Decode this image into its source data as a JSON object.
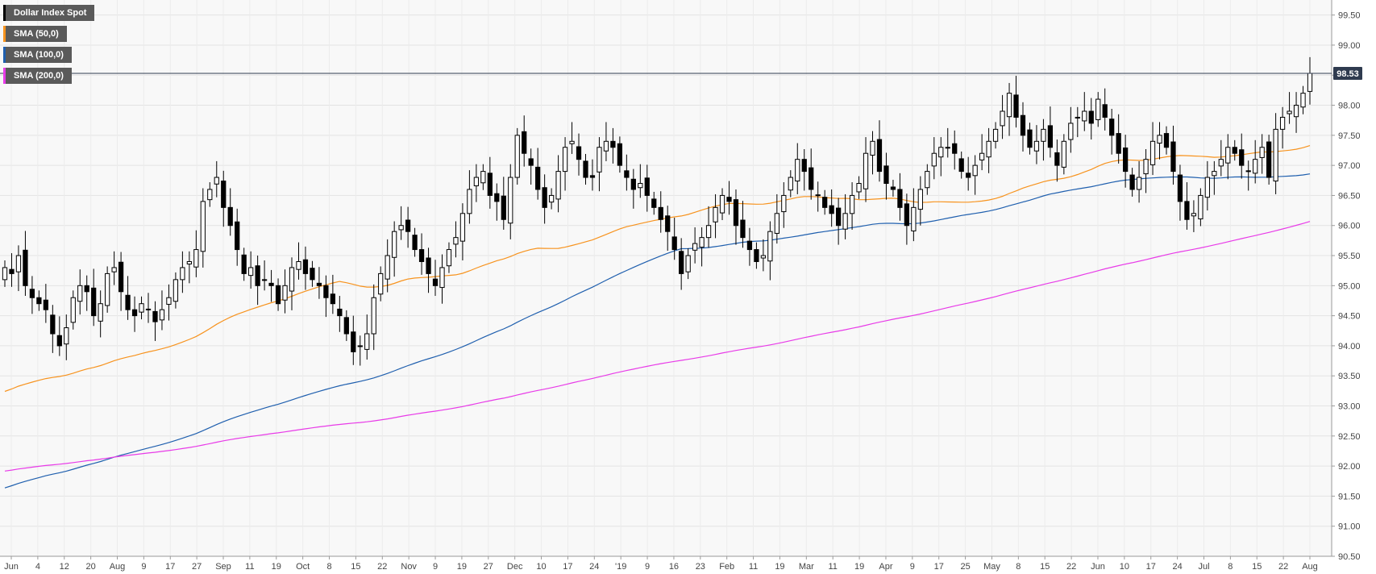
{
  "chart_data": {
    "type": "candlestick",
    "title": "",
    "xlabel": "",
    "ylabel": "",
    "ylim": [
      90.5,
      99.75
    ],
    "y_ticks": [
      "99.50",
      "99.00",
      "98.50",
      "98.00",
      "97.50",
      "97.00",
      "96.50",
      "96.00",
      "95.50",
      "95.00",
      "94.50",
      "94.00",
      "93.50",
      "93.00",
      "92.50",
      "92.00",
      "91.50",
      "91.00",
      "90.50"
    ],
    "x_ticks": [
      "Jun",
      "4",
      "12",
      "20",
      "Aug",
      "9",
      "17",
      "27",
      "Sep",
      "11",
      "19",
      "Oct",
      "8",
      "15",
      "22",
      "Nov",
      "9",
      "19",
      "27",
      "Dec",
      "10",
      "17",
      "24",
      "'19",
      "9",
      "16",
      "23",
      "Feb",
      "11",
      "19",
      "Mar",
      "11",
      "19",
      "Apr",
      "9",
      "17",
      "25",
      "May",
      "8",
      "15",
      "22",
      "Jun",
      "10",
      "17",
      "24",
      "Jul",
      "8",
      "15",
      "22",
      "Aug"
    ],
    "grid": true,
    "current_price": {
      "label": "98.53",
      "value": 98.53
    },
    "legend": [
      {
        "name": "Dollar Index Spot",
        "color": "#000000"
      },
      {
        "name": "SMA (50,0)",
        "color": "#f7931e"
      },
      {
        "name": "SMA (100,0)",
        "color": "#1f5fae"
      },
      {
        "name": "SMA (200,0)",
        "color": "#e83be8"
      }
    ],
    "closes": [
      95.3,
      95.2,
      95.5,
      95.0,
      94.8,
      94.7,
      94.6,
      94.2,
      94.0,
      94.3,
      94.8,
      95.0,
      94.9,
      94.5,
      94.7,
      95.2,
      95.3,
      94.9,
      94.6,
      94.5,
      94.7,
      94.6,
      94.4,
      94.6,
      94.8,
      95.1,
      95.3,
      95.4,
      95.6,
      96.4,
      96.6,
      96.8,
      96.3,
      96.0,
      95.6,
      95.2,
      95.3,
      95.0,
      95.1,
      95.0,
      94.7,
      95.0,
      95.3,
      95.4,
      95.2,
      95.1,
      95.0,
      94.8,
      94.7,
      94.5,
      94.2,
      93.9,
      94.0,
      94.2,
      94.8,
      95.2,
      95.5,
      95.9,
      96.0,
      95.9,
      95.6,
      95.4,
      95.2,
      95.0,
      95.3,
      95.6,
      95.8,
      96.2,
      96.6,
      96.8,
      96.9,
      96.5,
      96.4,
      96.1,
      96.8,
      97.5,
      97.2,
      97.0,
      96.6,
      96.3,
      96.5,
      96.9,
      97.3,
      97.4,
      97.1,
      96.8,
      96.8,
      97.3,
      97.4,
      97.3,
      97.0,
      96.8,
      96.6,
      96.7,
      96.5,
      96.3,
      96.1,
      95.9,
      95.6,
      95.2,
      95.5,
      95.7,
      95.8,
      96.0,
      96.3,
      96.5,
      96.4,
      96.0,
      95.8,
      95.6,
      95.4,
      95.5,
      95.9,
      96.2,
      96.5,
      96.8,
      97.1,
      96.9,
      96.6,
      96.5,
      96.3,
      96.2,
      96.0,
      96.2,
      96.5,
      96.7,
      97.2,
      97.4,
      96.9,
      96.7,
      96.6,
      96.3,
      96.0,
      96.3,
      96.6,
      96.9,
      97.2,
      97.3,
      97.3,
      97.2,
      96.9,
      96.8,
      97.0,
      97.2,
      97.4,
      97.6,
      97.9,
      98.2,
      97.8,
      97.5,
      97.3,
      97.4,
      97.6,
      97.3,
      97.0,
      97.4,
      97.7,
      97.8,
      97.9,
      97.7,
      98.1,
      97.8,
      97.5,
      97.2,
      96.9,
      96.6,
      96.8,
      97.1,
      97.4,
      97.5,
      97.3,
      96.9,
      96.4,
      96.1,
      96.2,
      96.5,
      96.8,
      96.9,
      97.1,
      97.3,
      97.2,
      97.0,
      96.9,
      97.1,
      97.3,
      96.8,
      97.6,
      97.8,
      97.9,
      98.0,
      98.2,
      98.53
    ]
  }
}
